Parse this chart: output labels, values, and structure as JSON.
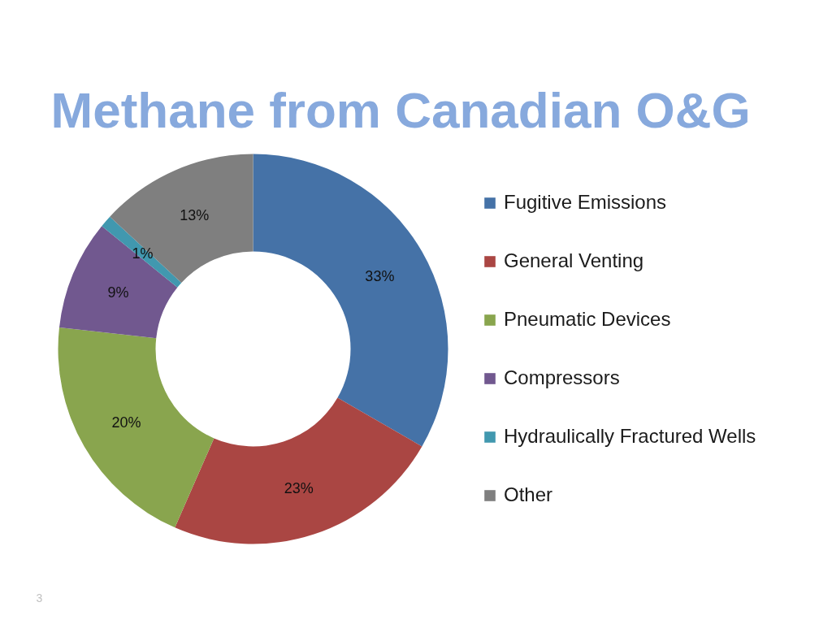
{
  "chart_data": {
    "type": "donut",
    "title": "Methane from Canadian O&G",
    "categories": [
      "Fugitive Emissions",
      "General Venting",
      "Pneumatic Devices",
      "Compressors",
      "Hydraulically Fractured Wells",
      "Other"
    ],
    "values": [
      33,
      23,
      20,
      9,
      1,
      13
    ],
    "colors": [
      "#4572a7",
      "#aa4643",
      "#89a54e",
      "#71588f",
      "#4198af",
      "#7f7f7f"
    ],
    "value_labels": [
      "33%",
      "23%",
      "20%",
      "9%",
      "1%",
      "13%"
    ],
    "legend": "right",
    "annotations": [
      "3"
    ]
  }
}
